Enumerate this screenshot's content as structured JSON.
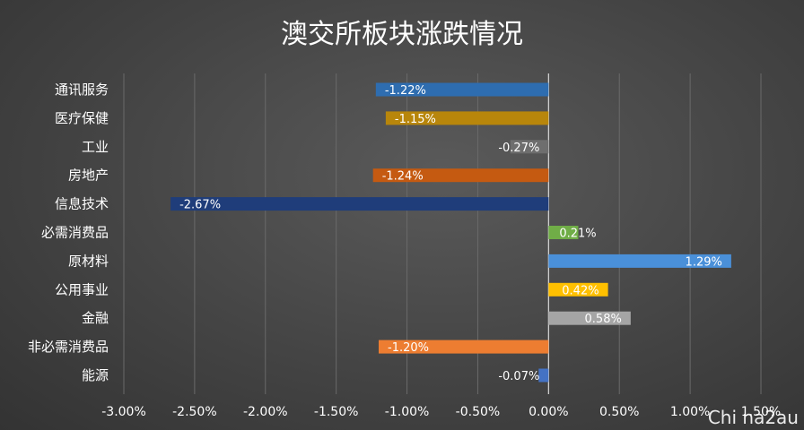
{
  "watermark": "Chi na2au",
  "chart_data": {
    "type": "bar",
    "orientation": "horizontal",
    "title": "澳交所板块涨跌情况",
    "xlabel": "",
    "ylabel": "",
    "xlim": [
      -3.0,
      1.5
    ],
    "grid": true,
    "legend": "none",
    "tick_labels": [
      "-3.00%",
      "-2.50%",
      "-2.00%",
      "-1.50%",
      "-1.00%",
      "-0.50%",
      "0.00%",
      "0.50%",
      "1.00%",
      "1.50%"
    ],
    "tick_values": [
      -3.0,
      -2.5,
      -2.0,
      -1.5,
      -1.0,
      -0.5,
      0.0,
      0.5,
      1.0,
      1.5
    ],
    "categories": [
      "通讯服务",
      "医疗保健",
      "工业",
      "房地产",
      "信息技术",
      "必需消费品",
      "原材料",
      "公用事业",
      "金融",
      "非必需消费品",
      "能源"
    ],
    "values": [
      -1.22,
      -1.15,
      -0.27,
      -1.24,
      -2.67,
      0.21,
      1.29,
      0.42,
      0.58,
      -1.2,
      -0.07
    ],
    "data_labels": [
      "-1.22%",
      "-1.15%",
      "-0.27%",
      "-1.24%",
      "-2.67%",
      "0.21%",
      "1.29%",
      "0.42%",
      "0.58%",
      "-1.20%",
      "-0.07%"
    ],
    "colors": [
      "#2e6db0",
      "#b8860b",
      "#6e6e6e",
      "#c55a11",
      "#1f3d7a",
      "#70ad47",
      "#4a90d9",
      "#ffc000",
      "#a5a5a5",
      "#ed7d31",
      "#4472c4"
    ]
  }
}
